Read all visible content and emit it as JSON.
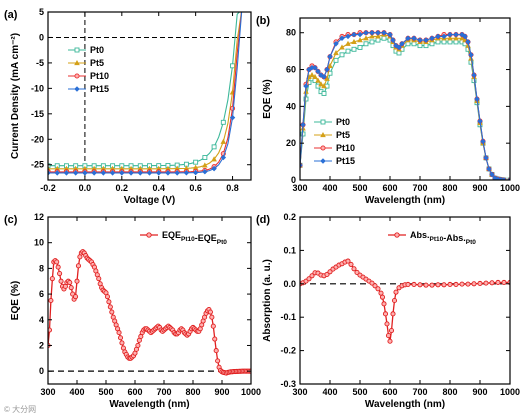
{
  "colors": {
    "Pt0": "#3cb89a",
    "Pt5": "#d4a017",
    "Pt10": "#e83030",
    "Pt15": "#2a6fd6",
    "red": "#e02020"
  },
  "watermark": "© 大分网",
  "chart_data": [
    {
      "id": "a",
      "panel_label": "(a)",
      "type": "line",
      "xlabel": "Voltage (V)",
      "ylabel": "Current Density (mA cm⁻²)",
      "xlim": [
        -0.2,
        0.9
      ],
      "ylim": [
        -28,
        5
      ],
      "xticks": [
        -0.2,
        0.0,
        0.2,
        0.4,
        0.6,
        0.8
      ],
      "xticklabels": [
        "-0.2",
        "0.0",
        "0.2",
        "0.4",
        "0.6",
        "0.8"
      ],
      "yticks": [
        5,
        0,
        -5,
        -10,
        -15,
        -20,
        -25
      ],
      "yticklabels": [
        "5",
        "0",
        "-5",
        "-10",
        "-15",
        "-20",
        "-25"
      ],
      "legend_position": "upper-left",
      "series": [
        {
          "name": "Pt0",
          "jsc": -25.2,
          "voc": 0.815,
          "n": 0.06,
          "x": [],
          "y": []
        },
        {
          "name": "Pt5",
          "jsc": -25.8,
          "voc": 0.826,
          "n": 0.048,
          "x": [],
          "y": []
        },
        {
          "name": "Pt10",
          "jsc": -26.4,
          "voc": 0.83,
          "n": 0.04,
          "x": [],
          "y": []
        },
        {
          "name": "Pt15",
          "jsc": -26.6,
          "voc": 0.835,
          "n": 0.039,
          "x": [],
          "y": []
        }
      ]
    },
    {
      "id": "b",
      "panel_label": "(b)",
      "type": "line",
      "xlabel": "Wavelength (nm)",
      "ylabel": "EQE (%)",
      "xlim": [
        300,
        1000
      ],
      "ylim": [
        0,
        88
      ],
      "xticks": [
        300,
        400,
        500,
        600,
        700,
        800,
        900,
        1000
      ],
      "xticklabels": [
        "300",
        "400",
        "500",
        "600",
        "700",
        "800",
        "900",
        "1000"
      ],
      "yticks": [
        0,
        20,
        40,
        60,
        80
      ],
      "yticklabels": [
        "0",
        "20",
        "40",
        "60",
        "80"
      ],
      "legend_position": "lower-left",
      "x": [
        300,
        310,
        320,
        330,
        340,
        350,
        360,
        370,
        380,
        390,
        400,
        420,
        440,
        460,
        480,
        500,
        520,
        540,
        560,
        580,
        600,
        610,
        620,
        630,
        640,
        660,
        680,
        700,
        720,
        740,
        760,
        780,
        800,
        820,
        840,
        850,
        860,
        870,
        880,
        890,
        900,
        910,
        920,
        930,
        940,
        950,
        960,
        970,
        980,
        1000
      ],
      "series": [
        {
          "name": "Pt0",
          "y": [
            8,
            25,
            44,
            53,
            55,
            54,
            51,
            48,
            47,
            51,
            58,
            65,
            68,
            70,
            71,
            72,
            74,
            75,
            76,
            77,
            76,
            73,
            70,
            69,
            71,
            74,
            74,
            73,
            73,
            74,
            75,
            75,
            75,
            75,
            75,
            74,
            71,
            64,
            54,
            42,
            30,
            20,
            12,
            6,
            3,
            1,
            0.5,
            0.2,
            0,
            0
          ]
        },
        {
          "name": "Pt5",
          "y": [
            8,
            28,
            48,
            56,
            57,
            56,
            54,
            52,
            51,
            55,
            62,
            69,
            72,
            74,
            75,
            76,
            77,
            78,
            78,
            79,
            78,
            75,
            72,
            71,
            73,
            76,
            76,
            75,
            75,
            76,
            77,
            77,
            77,
            77,
            77,
            76,
            73,
            66,
            56,
            43,
            31,
            20,
            12,
            6,
            3,
            1,
            0.5,
            0.2,
            0,
            0
          ]
        },
        {
          "name": "Pt10",
          "y": [
            8,
            30,
            52,
            60,
            62,
            61,
            59,
            57,
            56,
            60,
            67,
            75,
            78,
            79,
            79,
            80,
            80,
            80,
            80,
            80,
            79,
            76,
            73,
            72,
            74,
            77,
            77,
            76,
            76,
            77,
            78,
            79,
            79,
            79,
            79,
            78,
            75,
            68,
            57,
            44,
            32,
            21,
            12,
            6,
            3,
            1,
            0.5,
            0.2,
            0,
            0
          ]
        },
        {
          "name": "Pt15",
          "y": [
            8,
            30,
            51,
            60,
            61,
            61,
            59,
            57,
            56,
            60,
            67,
            74,
            77,
            78,
            79,
            79,
            80,
            80,
            80,
            80,
            79,
            76,
            73,
            72,
            74,
            77,
            77,
            76,
            76,
            77,
            78,
            78,
            79,
            79,
            79,
            78,
            75,
            68,
            57,
            44,
            32,
            21,
            12,
            6,
            3,
            1,
            0.5,
            0.2,
            0,
            0
          ]
        }
      ]
    },
    {
      "id": "c",
      "panel_label": "(c)",
      "type": "line",
      "xlabel": "Wavelength (nm)",
      "ylabel": "EQE (%)",
      "xlim": [
        300,
        1000
      ],
      "ylim": [
        -1,
        12
      ],
      "xticks": [
        300,
        400,
        500,
        600,
        700,
        800,
        900,
        1000
      ],
      "xticklabels": [
        "300",
        "400",
        "500",
        "600",
        "700",
        "800",
        "900",
        "1000"
      ],
      "yticks": [
        0,
        2,
        4,
        6,
        8,
        10,
        12
      ],
      "yticklabels": [
        "0",
        "2",
        "4",
        "6",
        "8",
        "10",
        "12"
      ],
      "zero_line": true,
      "legend_position": "upper-right",
      "legend_text": {
        "main": "EQE",
        "sub1": "Pt10",
        "dash": "-EQE",
        "sub2": "Pt0"
      },
      "series": [
        {
          "name": "EQE Pt10 - EQE Pt0",
          "x": [
            300,
            305,
            310,
            315,
            320,
            325,
            330,
            335,
            340,
            345,
            350,
            355,
            360,
            365,
            370,
            375,
            380,
            385,
            390,
            395,
            400,
            405,
            410,
            415,
            420,
            425,
            430,
            435,
            440,
            445,
            450,
            455,
            460,
            465,
            470,
            475,
            480,
            485,
            490,
            495,
            500,
            505,
            510,
            515,
            520,
            525,
            530,
            535,
            540,
            545,
            550,
            555,
            560,
            565,
            570,
            575,
            580,
            585,
            590,
            595,
            600,
            605,
            610,
            615,
            620,
            625,
            630,
            635,
            640,
            645,
            650,
            655,
            660,
            665,
            670,
            675,
            680,
            685,
            690,
            695,
            700,
            705,
            710,
            715,
            720,
            725,
            730,
            735,
            740,
            745,
            750,
            755,
            760,
            765,
            770,
            775,
            780,
            785,
            790,
            795,
            800,
            805,
            810,
            815,
            820,
            825,
            830,
            835,
            840,
            845,
            850,
            855,
            860,
            865,
            870,
            875,
            880,
            885,
            890,
            895,
            900,
            905,
            910,
            915,
            920,
            925,
            930,
            935,
            940,
            945,
            950,
            955,
            960,
            965,
            970,
            975,
            980,
            985,
            990,
            995,
            1000
          ],
          "y": [
            2,
            3.2,
            5.5,
            7.2,
            8.5,
            8.6,
            8.5,
            8.1,
            7.6,
            7.0,
            6.6,
            6.4,
            6.6,
            6.9,
            7.0,
            6.9,
            6.5,
            6.0,
            5.6,
            5.8,
            7.0,
            8.2,
            8.9,
            9.2,
            9.3,
            9.2,
            9.0,
            8.8,
            8.7,
            8.6,
            8.5,
            8.3,
            8.1,
            7.8,
            7.5,
            7.2,
            6.8,
            6.5,
            6.3,
            6.2,
            6.1,
            5.8,
            5.4,
            5.0,
            4.6,
            4.2,
            3.9,
            3.6,
            3.3,
            3.0,
            2.6,
            2.2,
            1.8,
            1.5,
            1.3,
            1.1,
            1.0,
            1.0,
            1.1,
            1.2,
            1.4,
            1.7,
            2.0,
            2.4,
            2.7,
            3.0,
            3.2,
            3.3,
            3.3,
            3.2,
            3.1,
            3.0,
            3.1,
            3.2,
            3.3,
            3.4,
            3.5,
            3.4,
            3.2,
            3.1,
            3.2,
            3.3,
            3.4,
            3.5,
            3.4,
            3.3,
            3.2,
            3.0,
            2.9,
            2.9,
            3.0,
            3.2,
            3.3,
            3.2,
            3.0,
            2.9,
            2.8,
            2.9,
            3.1,
            3.3,
            3.4,
            3.3,
            3.2,
            3.1,
            3.1,
            3.3,
            3.6,
            3.9,
            4.2,
            4.5,
            4.7,
            4.8,
            4.6,
            4.2,
            3.5,
            2.5,
            1.6,
            0.8,
            0.3,
            0.05,
            -0.05,
            -0.1,
            -0.12,
            -0.15,
            -0.1,
            -0.08,
            -0.05,
            -0.05,
            -0.03,
            -0.03,
            -0.02,
            -0.02,
            -0.01,
            -0.01,
            0,
            0,
            0,
            0,
            0,
            0,
            0
          ]
        }
      ]
    },
    {
      "id": "d",
      "panel_label": "(d)",
      "type": "line",
      "xlabel": "Wavelength (nm)",
      "ylabel": "Absorption (a. u.)",
      "xlim": [
        300,
        1000
      ],
      "ylim": [
        -0.3,
        0.2
      ],
      "xticks": [
        300,
        400,
        500,
        600,
        700,
        800,
        900,
        1000
      ],
      "xticklabels": [
        "300",
        "400",
        "500",
        "600",
        "700",
        "800",
        "900",
        "1000"
      ],
      "yticks": [
        0.2,
        0.1,
        0.0,
        -0.1,
        -0.2,
        -0.3
      ],
      "yticklabels": [
        "0.2",
        "0.1",
        "0.0",
        "-0.1",
        "-0.2",
        "-0.3"
      ],
      "zero_line": true,
      "legend_position": "upper-right",
      "legend_text": {
        "main1": "Abs.",
        "sub1": "Pt10",
        "dash": "-Abs.",
        "sub2": "Pt0"
      },
      "series": [
        {
          "name": "Abs Pt10 - Abs Pt0",
          "x": [
            300,
            310,
            320,
            330,
            340,
            350,
            360,
            370,
            380,
            390,
            400,
            410,
            420,
            430,
            440,
            450,
            460,
            470,
            480,
            490,
            500,
            510,
            520,
            530,
            540,
            550,
            560,
            570,
            575,
            580,
            585,
            590,
            595,
            600,
            605,
            610,
            615,
            620,
            630,
            640,
            650,
            660,
            680,
            700,
            720,
            740,
            760,
            780,
            800,
            820,
            840,
            860,
            880,
            900,
            920,
            940,
            960,
            980,
            1000
          ],
          "y": [
            0.0,
            0.003,
            0.008,
            0.015,
            0.024,
            0.033,
            0.032,
            0.026,
            0.024,
            0.028,
            0.036,
            0.044,
            0.05,
            0.056,
            0.06,
            0.065,
            0.068,
            0.058,
            0.045,
            0.034,
            0.026,
            0.02,
            0.014,
            0.008,
            0.002,
            -0.006,
            -0.015,
            -0.028,
            -0.04,
            -0.06,
            -0.09,
            -0.12,
            -0.155,
            -0.172,
            -0.14,
            -0.09,
            -0.05,
            -0.025,
            -0.012,
            -0.006,
            -0.003,
            -0.002,
            -0.002,
            -0.003,
            -0.004,
            -0.004,
            -0.003,
            -0.003,
            -0.002,
            -0.002,
            -0.001,
            -0.001,
            0.0,
            0.001,
            0.002,
            0.003,
            0.004,
            0.004,
            0.004
          ]
        }
      ]
    }
  ]
}
